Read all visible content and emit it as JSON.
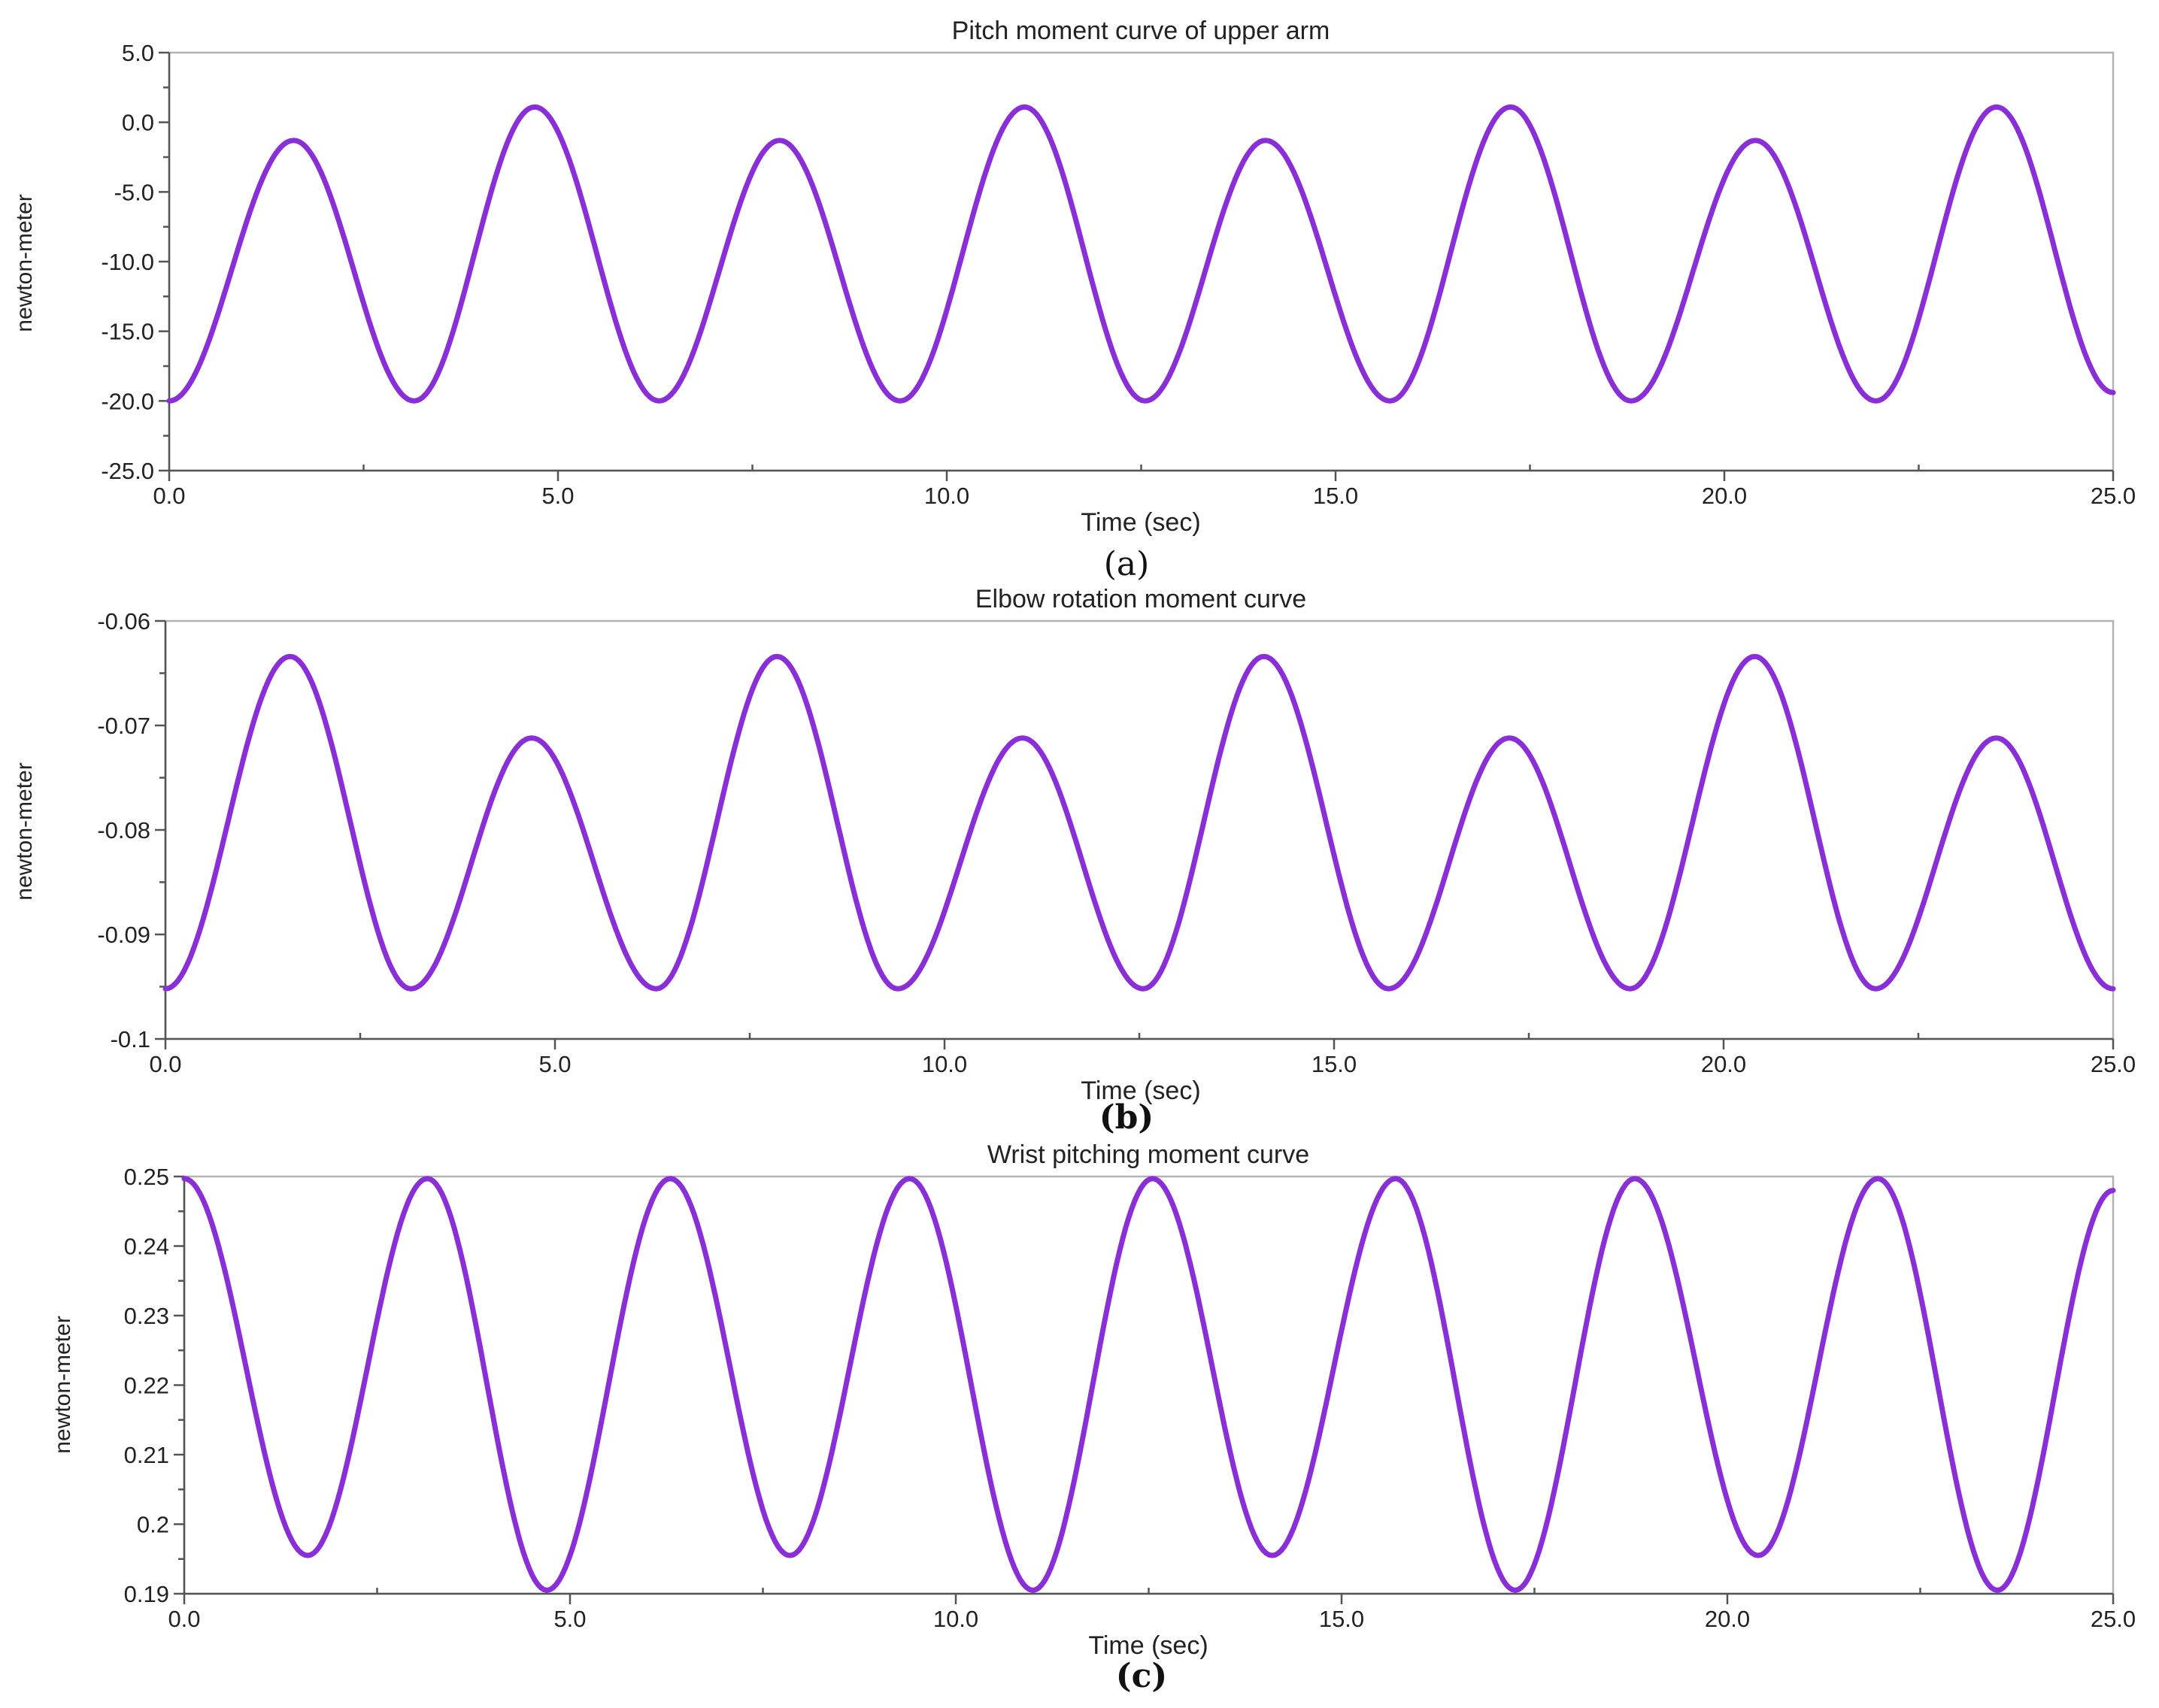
{
  "colors": {
    "series": "#8a2ed8"
  },
  "chart_data": [
    {
      "type": "line",
      "title": "Pitch moment curve of upper arm",
      "xlabel": "Time (sec)",
      "ylabel": "newton-meter",
      "caption": "(a)",
      "xlim": [
        0,
        25
      ],
      "ylim": [
        -25,
        5
      ],
      "xticks": [
        "0.0",
        "5.0",
        "10.0",
        "15.0",
        "20.0",
        "25.0"
      ],
      "yticks": [
        "5.0",
        "0.0",
        "-5.0",
        "-10.0",
        "-15.0",
        "-20.0",
        "-25.0"
      ],
      "series": [
        {
          "x": [
            0,
            1.6,
            3.15,
            4.7,
            6.3,
            7.85,
            9.4,
            11.0,
            12.55,
            14.1,
            15.7,
            17.25,
            18.8,
            20.4,
            21.95,
            23.5,
            25.0
          ],
          "values": [
            -20.0,
            -1.3,
            -20.0,
            1.1,
            -20.0,
            -1.3,
            -20.0,
            1.1,
            -20.0,
            -1.3,
            -20.0,
            1.1,
            -20.0,
            -1.3,
            -20.0,
            1.1,
            -19.4
          ]
        }
      ]
    },
    {
      "type": "line",
      "title": "Elbow rotation moment curve",
      "xlabel": "Time (sec)",
      "ylabel": "newton-meter",
      "caption": "(b)",
      "xlim": [
        0,
        25
      ],
      "ylim": [
        -0.1,
        -0.06
      ],
      "xticks": [
        "0.0",
        "5.0",
        "10.0",
        "15.0",
        "20.0",
        "25.0"
      ],
      "yticks": [
        "-0.06",
        "-0.07",
        "-0.08",
        "-0.09",
        "-0.1"
      ],
      "series": [
        {
          "x": [
            0,
            1.6,
            3.15,
            4.7,
            6.3,
            7.85,
            9.4,
            11.0,
            12.55,
            14.1,
            15.7,
            17.25,
            18.8,
            20.4,
            21.95,
            23.5,
            25.0
          ],
          "values": [
            -0.0952,
            -0.0634,
            -0.0952,
            -0.0712,
            -0.0952,
            -0.0634,
            -0.0952,
            -0.0712,
            -0.0952,
            -0.0634,
            -0.0952,
            -0.0712,
            -0.0952,
            -0.0634,
            -0.0952,
            -0.0712,
            -0.0952
          ]
        }
      ]
    },
    {
      "type": "line",
      "title": "Wrist pitching moment curve",
      "xlabel": "Time (sec)",
      "ylabel": "newton-meter",
      "caption": "(c)",
      "xlim": [
        0,
        25
      ],
      "ylim": [
        0.19,
        0.25
      ],
      "xticks": [
        "0.0",
        "5.0",
        "10.0",
        "15.0",
        "20.0",
        "25.0"
      ],
      "yticks": [
        "0.25",
        "0.24",
        "0.23",
        "0.22",
        "0.21",
        "0.2",
        "0.19"
      ],
      "series": [
        {
          "x": [
            0,
            1.6,
            3.15,
            4.7,
            6.3,
            7.85,
            9.4,
            11.0,
            12.55,
            14.1,
            15.7,
            17.25,
            18.8,
            20.4,
            21.95,
            23.5,
            25.0
          ],
          "values": [
            0.2497,
            0.1955,
            0.2497,
            0.1905,
            0.2497,
            0.1955,
            0.2497,
            0.1905,
            0.2497,
            0.1955,
            0.2497,
            0.1905,
            0.2497,
            0.1955,
            0.2497,
            0.1905,
            0.248
          ]
        }
      ]
    }
  ]
}
